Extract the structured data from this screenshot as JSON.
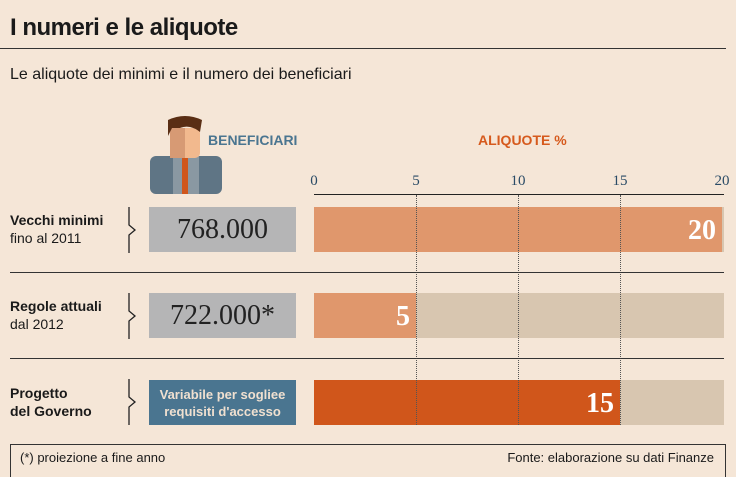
{
  "title": "I numeri e le aliquote",
  "subtitle": "Le aliquote dei minimi e il numero dei beneficiari",
  "headers": {
    "beneficiari": "BENEFICIARI",
    "aliquote": "ALIQUOTE %"
  },
  "colors": {
    "background": "#f5e6d7",
    "blue": "#4a7590",
    "orange_light": "#e0976c",
    "orange_dark": "#d0561b",
    "track": "#d8c6b0",
    "grey": "#b5b5b6"
  },
  "chart_data": {
    "type": "bar",
    "title": "ALIQUOTE %",
    "xlim": [
      0,
      20
    ],
    "ticks": [
      "0",
      "5",
      "10",
      "15",
      "20"
    ],
    "categories": [
      "Vecchi minimi fino al 2011",
      "Regole attuali dal 2012",
      "Progetto del Governo"
    ],
    "values": [
      20,
      5,
      15
    ],
    "value_labels": [
      "20",
      "5",
      "15"
    ]
  },
  "rows": [
    {
      "label": "Vecchi minimi",
      "sub": "fino al 2011",
      "beneficiari": "768.000"
    },
    {
      "label": "Regole attuali",
      "sub": "dal 2012",
      "beneficiari": "722.000*"
    },
    {
      "label": "Progetto",
      "label2": "del Governo",
      "beneficiari": "Variabile per sogliee requisiti d'accesso"
    }
  ],
  "footer": {
    "note": "(*) proiezione a fine anno",
    "source": "Fonte: elaborazione su dati Finanze"
  }
}
